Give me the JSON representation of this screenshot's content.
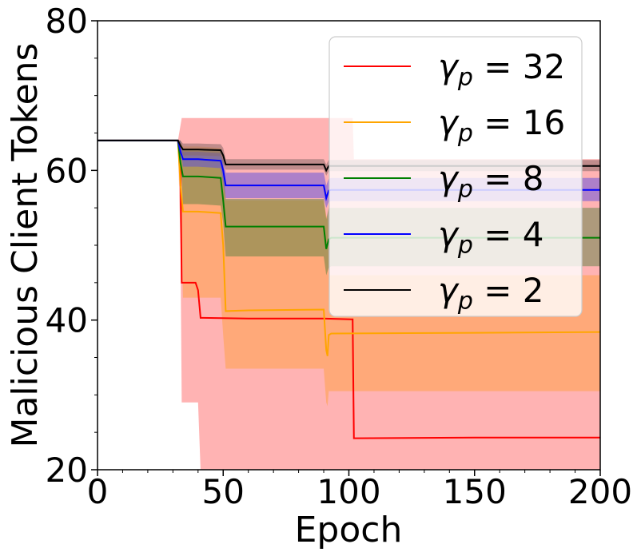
{
  "chart_data": {
    "type": "line",
    "title": "",
    "xlabel": "Epoch",
    "ylabel": "Malicious Client Tokens",
    "xlim": [
      0,
      200
    ],
    "ylim": [
      20,
      80
    ],
    "xticks": [
      0,
      50,
      100,
      150,
      200
    ],
    "yticks": [
      20,
      40,
      60,
      80
    ],
    "grid": false,
    "legend_position": "top-right",
    "series": [
      {
        "name": "γp = 32",
        "legend_var": "γ",
        "legend_sub": "p",
        "legend_rest": " = 32",
        "color": "#ff0000",
        "band_color": "#ff8080",
        "band_opacity": 0.6,
        "x": [
          0,
          32,
          33,
          33.5,
          39,
          40,
          41,
          60,
          90,
          101,
          101.5,
          102,
          150,
          200
        ],
        "y": [
          64,
          64,
          60,
          45,
          45,
          44,
          40.3,
          40.2,
          40.2,
          40.1,
          40.1,
          24.2,
          24.3,
          24.3
        ],
        "lower": [
          64,
          64,
          50,
          29,
          29,
          29,
          20,
          20,
          20,
          20,
          20,
          20,
          20,
          20
        ],
        "upper": [
          64,
          64,
          66,
          67,
          67,
          67,
          67,
          67,
          67,
          67,
          67,
          61.5,
          61.5,
          61.5
        ]
      },
      {
        "name": "γp = 16",
        "legend_var": "γ",
        "legend_sub": "p",
        "legend_rest": " = 16",
        "color": "#ffa500",
        "band_color": "#ffa040",
        "band_opacity": 0.5,
        "x": [
          0,
          32,
          33,
          34,
          40,
          49,
          50,
          51,
          60,
          90,
          91,
          91.5,
          92,
          93,
          150,
          200
        ],
        "y": [
          64,
          64,
          58,
          54.5,
          54.5,
          54.3,
          50,
          41.2,
          41.3,
          41.4,
          36,
          35.2,
          38,
          38.2,
          38.3,
          38.4
        ],
        "lower": [
          64,
          64,
          60,
          43,
          43,
          43,
          38,
          33.5,
          33.5,
          33.5,
          29,
          28.5,
          30.5,
          30.5,
          30.5,
          30.5
        ],
        "upper": [
          64,
          64,
          64,
          63.2,
          63.2,
          63,
          62,
          56,
          56,
          56,
          54,
          53.5,
          46,
          46,
          46,
          46
        ]
      },
      {
        "name": "γp = 8",
        "legend_var": "γ",
        "legend_sub": "p",
        "legend_rest": " = 8",
        "color": "#008000",
        "band_color": "#4a7c3a",
        "band_opacity": 0.45,
        "x": [
          0,
          32,
          33,
          34,
          40,
          49,
          50,
          51,
          60,
          90,
          91,
          92,
          93,
          150,
          200
        ],
        "y": [
          64,
          64,
          61,
          59.2,
          59.2,
          59,
          56,
          52.5,
          52.5,
          52.5,
          49.5,
          50.8,
          51,
          51,
          51
        ],
        "lower": [
          64,
          64,
          62,
          55.5,
          55.5,
          55.3,
          53,
          48.5,
          48.5,
          48.5,
          46,
          47,
          47.2,
          47.2,
          47.2
        ],
        "upper": [
          64,
          64,
          64,
          62.8,
          62.8,
          62.6,
          61,
          56.2,
          56.2,
          56.2,
          53.5,
          55,
          55,
          55,
          55
        ]
      },
      {
        "name": "γp = 4",
        "legend_var": "γ",
        "legend_sub": "p",
        "legend_rest": " = 4",
        "color": "#0000ff",
        "band_color": "#5c4de0",
        "band_opacity": 0.5,
        "x": [
          0,
          32,
          33,
          34,
          40,
          49,
          50,
          51,
          60,
          90,
          91,
          92,
          93,
          150,
          200
        ],
        "y": [
          64,
          64,
          62.5,
          61.5,
          61.5,
          61.3,
          60,
          58,
          58,
          58,
          56.3,
          57.3,
          57.4,
          57.4,
          57.4
        ],
        "lower": [
          64,
          64,
          63,
          60.5,
          60.5,
          60.3,
          58.5,
          56.3,
          56.3,
          56.3,
          55,
          55.8,
          55.9,
          55.9,
          55.9
        ],
        "upper": [
          64,
          64,
          64,
          62.5,
          62.5,
          62.3,
          61.5,
          59.7,
          59.7,
          59.7,
          58,
          58.9,
          59,
          59,
          59
        ]
      },
      {
        "name": "γp = 2",
        "legend_var": "γ",
        "legend_sub": "p",
        "legend_rest": " = 2",
        "color": "#000000",
        "band_color": "#8a6a6a",
        "band_opacity": 0.55,
        "x": [
          0,
          32,
          33,
          34,
          40,
          49,
          50,
          51,
          60,
          90,
          91,
          92,
          93,
          150,
          200
        ],
        "y": [
          64,
          64,
          63.3,
          62.8,
          62.8,
          62.7,
          62,
          60.8,
          60.8,
          60.8,
          60,
          60.6,
          60.6,
          60.6,
          60.6
        ],
        "lower": [
          64,
          64,
          63.5,
          62,
          62,
          61.9,
          61,
          60.1,
          60.1,
          60.1,
          59.3,
          59.9,
          59.9,
          59.9,
          59.9
        ],
        "upper": [
          64,
          64,
          64,
          63.6,
          63.6,
          63.5,
          63,
          61.5,
          61.5,
          61.5,
          60.8,
          61.4,
          61.4,
          61.4,
          61.4
        ]
      }
    ]
  }
}
